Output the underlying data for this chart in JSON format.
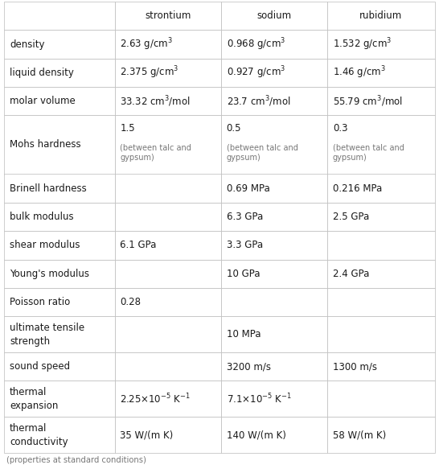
{
  "headers": [
    "",
    "strontium",
    "sodium",
    "rubidium"
  ],
  "rows": [
    {
      "property": "density",
      "strontium": [
        "2.63 g/cm$^3$",
        ""
      ],
      "sodium": [
        "0.968 g/cm$^3$",
        ""
      ],
      "rubidium": [
        "1.532 g/cm$^3$",
        ""
      ]
    },
    {
      "property": "liquid density",
      "strontium": [
        "2.375 g/cm$^3$",
        ""
      ],
      "sodium": [
        "0.927 g/cm$^3$",
        ""
      ],
      "rubidium": [
        "1.46 g/cm$^3$",
        ""
      ]
    },
    {
      "property": "molar volume",
      "strontium": [
        "33.32 cm$^3$/mol",
        ""
      ],
      "sodium": [
        "23.7 cm$^3$/mol",
        ""
      ],
      "rubidium": [
        "55.79 cm$^3$/mol",
        ""
      ]
    },
    {
      "property": "Mohs hardness",
      "strontium": [
        "1.5",
        "(between talc and\ngypsum)"
      ],
      "sodium": [
        "0.5",
        "(between talc and\ngypsum)"
      ],
      "rubidium": [
        "0.3",
        "(between talc and\ngypsum)"
      ]
    },
    {
      "property": "Brinell hardness",
      "strontium": [
        "",
        ""
      ],
      "sodium": [
        "0.69 MPa",
        ""
      ],
      "rubidium": [
        "0.216 MPa",
        ""
      ]
    },
    {
      "property": "bulk modulus",
      "strontium": [
        "",
        ""
      ],
      "sodium": [
        "6.3 GPa",
        ""
      ],
      "rubidium": [
        "2.5 GPa",
        ""
      ]
    },
    {
      "property": "shear modulus",
      "strontium": [
        "6.1 GPa",
        ""
      ],
      "sodium": [
        "3.3 GPa",
        ""
      ],
      "rubidium": [
        "",
        ""
      ]
    },
    {
      "property": "Young's modulus",
      "strontium": [
        "",
        ""
      ],
      "sodium": [
        "10 GPa",
        ""
      ],
      "rubidium": [
        "2.4 GPa",
        ""
      ]
    },
    {
      "property": "Poisson ratio",
      "strontium": [
        "0.28",
        ""
      ],
      "sodium": [
        "",
        ""
      ],
      "rubidium": [
        "",
        ""
      ]
    },
    {
      "property": "ultimate tensile\nstrength",
      "strontium": [
        "",
        ""
      ],
      "sodium": [
        "10 MPa",
        ""
      ],
      "rubidium": [
        "",
        ""
      ]
    },
    {
      "property": "sound speed",
      "strontium": [
        "",
        ""
      ],
      "sodium": [
        "3200 m/s",
        ""
      ],
      "rubidium": [
        "1300 m/s",
        ""
      ]
    },
    {
      "property": "thermal\nexpansion",
      "strontium": [
        "2.25×10$^{-5}$ K$^{-1}$",
        ""
      ],
      "sodium": [
        "7.1×10$^{-5}$ K$^{-1}$",
        ""
      ],
      "rubidium": [
        "",
        ""
      ]
    },
    {
      "property": "thermal\nconductivity",
      "strontium": [
        "35 W/(m K)",
        ""
      ],
      "sodium": [
        "140 W/(m K)",
        ""
      ],
      "rubidium": [
        "58 W/(m K)",
        ""
      ]
    }
  ],
  "footer": "(properties at standard conditions)",
  "bg_color": "#ffffff",
  "grid_color": "#bbbbbb",
  "text_color": "#1a1a1a",
  "small_text_color": "#777777",
  "font_size": 8.5,
  "header_font_size": 8.5,
  "small_font_size": 7.0,
  "footer_font_size": 7.2,
  "prop_font_size": 8.5,
  "figwidth": 5.46,
  "figheight": 5.83,
  "dpi": 100
}
